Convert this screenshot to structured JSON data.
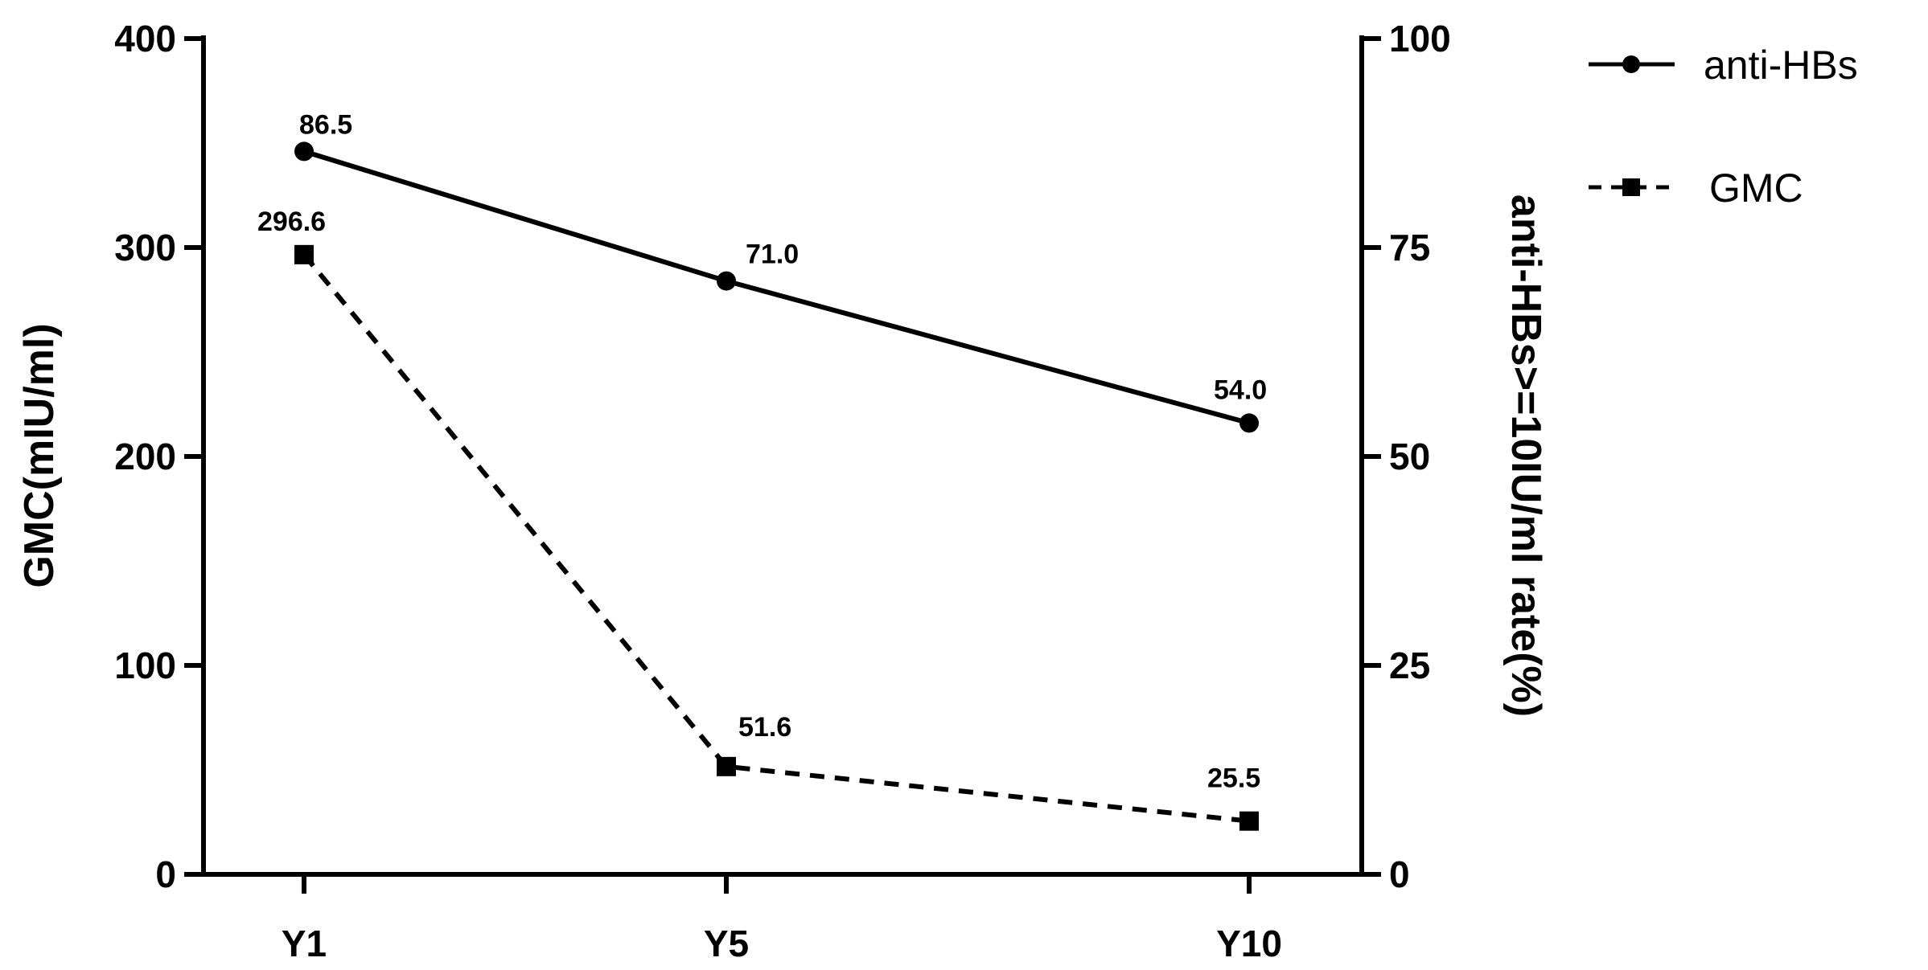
{
  "chart_data": {
    "type": "line",
    "categories": [
      "Y1",
      "Y5",
      "Y10"
    ],
    "ylabel_left": "GMC(mIU/ml)",
    "ylabel_right": "anti-HBs>=10IU/ml rate(%)",
    "ylim_left": [
      0,
      400
    ],
    "yticks_left": [
      0,
      100,
      200,
      300,
      400
    ],
    "ylim_right": [
      0,
      100
    ],
    "yticks_right": [
      0,
      25,
      50,
      75,
      100
    ],
    "grid": false,
    "legend_position": "top-right",
    "series": [
      {
        "name": "anti-HBs",
        "axis": "right",
        "style": "solid",
        "marker": "circle",
        "values": [
          86.5,
          71.0,
          54.0
        ],
        "labels": [
          "86.5",
          "71.0",
          "54.0"
        ]
      },
      {
        "name": "GMC",
        "axis": "left",
        "style": "dashed",
        "marker": "square",
        "values": [
          296.6,
          51.6,
          25.5
        ],
        "labels": [
          "296.6",
          "51.6",
          "25.5"
        ]
      }
    ]
  }
}
